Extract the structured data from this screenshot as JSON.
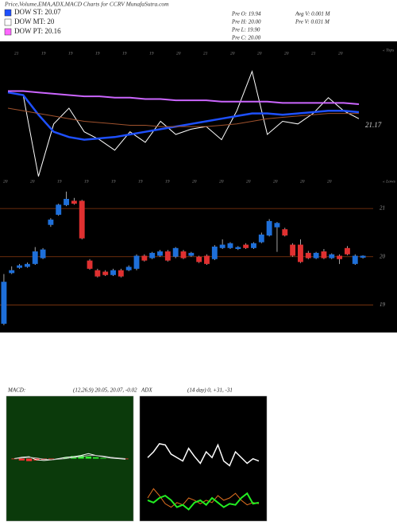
{
  "header": {
    "title": "Price,Volume,EMA,ADX,MACD Charts for CCRV MunafaSutra.com",
    "legend": [
      {
        "name": "DOW ST: 20.07",
        "color": "#1e50ff"
      },
      {
        "name": "DOW MT: 20",
        "color": "#ffffff"
      },
      {
        "name": "DOW PT: 20.16",
        "color": "#ff66ff"
      }
    ],
    "stats_left": [
      "Pre  O: 19.94",
      "Pre  H: 20.00",
      "Pre  L: 19.90",
      "Pre  C: 20.00"
    ],
    "stats_right": [
      "Avg V: 0.001 M",
      "Pre  V: 0.031 M"
    ]
  },
  "chart_data": [
    {
      "type": "line",
      "annotation": "21.17",
      "tops_label": "« Tops",
      "lows_label": "« Lows",
      "tops": [
        "21",
        "19",
        "19",
        "19",
        "19",
        "19",
        "20",
        "21",
        "20",
        "20",
        "20",
        "21",
        "20"
      ],
      "lows": [
        "20",
        "20",
        "19",
        "19",
        "19",
        "19",
        "19",
        "20",
        "20",
        "20",
        "20",
        "20",
        "20"
      ],
      "ylim": [
        0,
        100
      ],
      "series": [
        {
          "name": "price",
          "color": "#ffffff",
          "width": 1,
          "values": [
            72,
            70,
            8,
            48,
            60,
            42,
            36,
            28,
            42,
            34,
            50,
            40,
            44,
            46,
            36,
            58,
            88,
            40,
            50,
            48,
            56,
            68,
            58,
            52
          ]
        },
        {
          "name": "ema-short",
          "color": "#1e50ff",
          "width": 2.5,
          "values": [
            72,
            70,
            55,
            42,
            38,
            36,
            37,
            38,
            40,
            42,
            44,
            46,
            48,
            50,
            52,
            54,
            56,
            56,
            55,
            56,
            57,
            58,
            58,
            57
          ]
        },
        {
          "name": "ema-long",
          "color": "#cc66ff",
          "width": 2,
          "values": [
            73,
            73,
            72,
            71,
            70,
            69,
            69,
            68,
            68,
            67,
            67,
            66,
            66,
            66,
            65,
            65,
            65,
            65,
            64,
            64,
            64,
            64,
            64,
            63
          ]
        },
        {
          "name": "ema-mid",
          "color": "#a0522d",
          "width": 1,
          "values": [
            60,
            58,
            56,
            54,
            52,
            50,
            49,
            48,
            47,
            47,
            46,
            46,
            46,
            46,
            47,
            48,
            50,
            52,
            53,
            54,
            55,
            56,
            56,
            56
          ]
        }
      ]
    },
    {
      "type": "candlestick",
      "ylim": [
        18.56,
        21.2
      ],
      "yticks": [
        19,
        20,
        21
      ],
      "grid": true,
      "up_color": "#1e6fd9",
      "down_color": "#e03030",
      "ohlc": [
        {
          "o": 18.61,
          "h": 19.64,
          "l": 18.58,
          "c": 19.48
        },
        {
          "o": 19.66,
          "h": 19.8,
          "l": 19.64,
          "c": 19.72
        },
        {
          "o": 19.77,
          "h": 19.85,
          "l": 19.75,
          "c": 19.82
        },
        {
          "o": 19.79,
          "h": 19.88,
          "l": 19.77,
          "c": 19.85
        },
        {
          "o": 19.85,
          "h": 20.2,
          "l": 19.83,
          "c": 20.11
        },
        {
          "o": 19.97,
          "h": 20.18,
          "l": 19.95,
          "c": 20.15
        },
        {
          "o": 20.66,
          "h": 20.8,
          "l": 20.62,
          "c": 20.77
        },
        {
          "o": 20.87,
          "h": 21.1,
          "l": 20.85,
          "c": 21.08
        },
        {
          "o": 21.07,
          "h": 21.35,
          "l": 21.05,
          "c": 21.2
        },
        {
          "o": 21.16,
          "h": 21.22,
          "l": 21.08,
          "c": 21.1
        },
        {
          "o": 21.16,
          "h": 21.18,
          "l": 20.36,
          "c": 20.38
        },
        {
          "o": 19.92,
          "h": 19.95,
          "l": 19.73,
          "c": 19.75
        },
        {
          "o": 19.72,
          "h": 19.75,
          "l": 19.57,
          "c": 19.59
        },
        {
          "o": 19.69,
          "h": 19.72,
          "l": 19.6,
          "c": 19.62
        },
        {
          "o": 19.62,
          "h": 19.75,
          "l": 19.6,
          "c": 19.72
        },
        {
          "o": 19.72,
          "h": 19.75,
          "l": 19.57,
          "c": 19.59
        },
        {
          "o": 19.72,
          "h": 19.82,
          "l": 19.7,
          "c": 19.79
        },
        {
          "o": 19.75,
          "h": 20.05,
          "l": 19.72,
          "c": 20.02
        },
        {
          "o": 20.02,
          "h": 20.05,
          "l": 19.9,
          "c": 19.92
        },
        {
          "o": 19.97,
          "h": 20.1,
          "l": 19.95,
          "c": 20.08
        },
        {
          "o": 20.02,
          "h": 20.14,
          "l": 20,
          "c": 20.11
        },
        {
          "o": 20.11,
          "h": 20.14,
          "l": 19.9,
          "c": 19.92
        },
        {
          "o": 20,
          "h": 20.2,
          "l": 19.97,
          "c": 20.18
        },
        {
          "o": 20.11,
          "h": 20.14,
          "l": 19.95,
          "c": 19.97
        },
        {
          "o": 20.02,
          "h": 20.1,
          "l": 20,
          "c": 20.08
        },
        {
          "o": 20,
          "h": 20.02,
          "l": 19.87,
          "c": 19.89
        },
        {
          "o": 20.02,
          "h": 20.05,
          "l": 19.83,
          "c": 19.85
        },
        {
          "o": 19.95,
          "h": 20.24,
          "l": 19.93,
          "c": 20.21
        },
        {
          "o": 20.18,
          "h": 20.36,
          "l": 20.16,
          "c": 20.25
        },
        {
          "o": 20.18,
          "h": 20.3,
          "l": 20.16,
          "c": 20.28
        },
        {
          "o": 20.16,
          "h": 20.22,
          "l": 20.14,
          "c": 20.2
        },
        {
          "o": 20.25,
          "h": 20.28,
          "l": 20.16,
          "c": 20.18
        },
        {
          "o": 20.18,
          "h": 20.3,
          "l": 20.16,
          "c": 20.28
        },
        {
          "o": 20.3,
          "h": 20.5,
          "l": 20.28,
          "c": 20.46
        },
        {
          "o": 20.44,
          "h": 20.78,
          "l": 20.42,
          "c": 20.74
        },
        {
          "o": 20.61,
          "h": 20.72,
          "l": 20.1,
          "c": 20.7
        },
        {
          "o": 20.57,
          "h": 20.6,
          "l": 20.42,
          "c": 20.44
        },
        {
          "o": 20.25,
          "h": 20.28,
          "l": 20,
          "c": 20.02
        },
        {
          "o": 20.25,
          "h": 20.36,
          "l": 19.87,
          "c": 19.89
        },
        {
          "o": 20.08,
          "h": 20.12,
          "l": 19.95,
          "c": 19.97
        },
        {
          "o": 19.97,
          "h": 20.1,
          "l": 19.95,
          "c": 20.08
        },
        {
          "o": 20.11,
          "h": 20.16,
          "l": 19.95,
          "c": 19.97
        },
        {
          "o": 19.97,
          "h": 20.07,
          "l": 19.95,
          "c": 20.05
        },
        {
          "o": 20.02,
          "h": 20.05,
          "l": 19.85,
          "c": 19.95
        },
        {
          "o": 20.18,
          "h": 20.22,
          "l": 20.03,
          "c": 20.05
        },
        {
          "o": 19.85,
          "h": 20.05,
          "l": 19.83,
          "c": 20.02
        },
        {
          "o": 19.98,
          "h": 20.03,
          "l": 19.96,
          "c": 20.02
        }
      ]
    },
    {
      "type": "macd",
      "title": "MACD:",
      "subtitle": "(12,26,9) 20.05, 20.07, -0.02",
      "ylim": [
        -1,
        1
      ],
      "histogram": [
        -0.01,
        -0.03,
        -0.04,
        -0.03,
        -0.02,
        -0.01,
        0,
        0.02,
        0.04,
        0.05,
        0.03,
        0.02,
        0.01,
        0,
        0,
        -0.01
      ],
      "series": [
        {
          "name": "macd",
          "color": "#ffffff",
          "width": 1,
          "values": [
            0,
            0.02,
            0.03,
            -0.02,
            -0.03,
            -0.02,
            0,
            0.02,
            0.03,
            0.05,
            0.08,
            0.05,
            0.03,
            0.01,
            0,
            -0.01
          ]
        },
        {
          "name": "signal",
          "color": "#bbbbbb",
          "width": 1,
          "values": [
            0,
            0.01,
            0.02,
            0.01,
            -0.01,
            -0.02,
            -0.01,
            0,
            0.02,
            0.03,
            0.05,
            0.05,
            0.04,
            0.02,
            0.01,
            0
          ]
        }
      ]
    },
    {
      "type": "line",
      "title": "ADX",
      "subtitle": "(14 day) 0, +31, -31",
      "ylim": [
        0,
        100
      ],
      "series": [
        {
          "name": "adx",
          "color": "#ffffff",
          "width": 1.5,
          "values": [
            55,
            60,
            67,
            66,
            58,
            55,
            52,
            63,
            56,
            50,
            60,
            55,
            66,
            52,
            48,
            60,
            55,
            50,
            54,
            52
          ]
        },
        {
          "name": "plus-di",
          "color": "#e07020",
          "width": 1,
          "values": [
            20,
            28,
            22,
            15,
            12,
            16,
            14,
            20,
            18,
            15,
            18,
            16,
            22,
            18,
            20,
            24,
            18,
            14,
            16,
            15
          ]
        },
        {
          "name": "minus-di",
          "color": "#22ee22",
          "width": 2,
          "values": [
            18,
            16,
            20,
            22,
            18,
            12,
            14,
            10,
            16,
            18,
            14,
            20,
            16,
            12,
            15,
            14,
            20,
            24,
            15,
            16
          ]
        }
      ]
    }
  ]
}
